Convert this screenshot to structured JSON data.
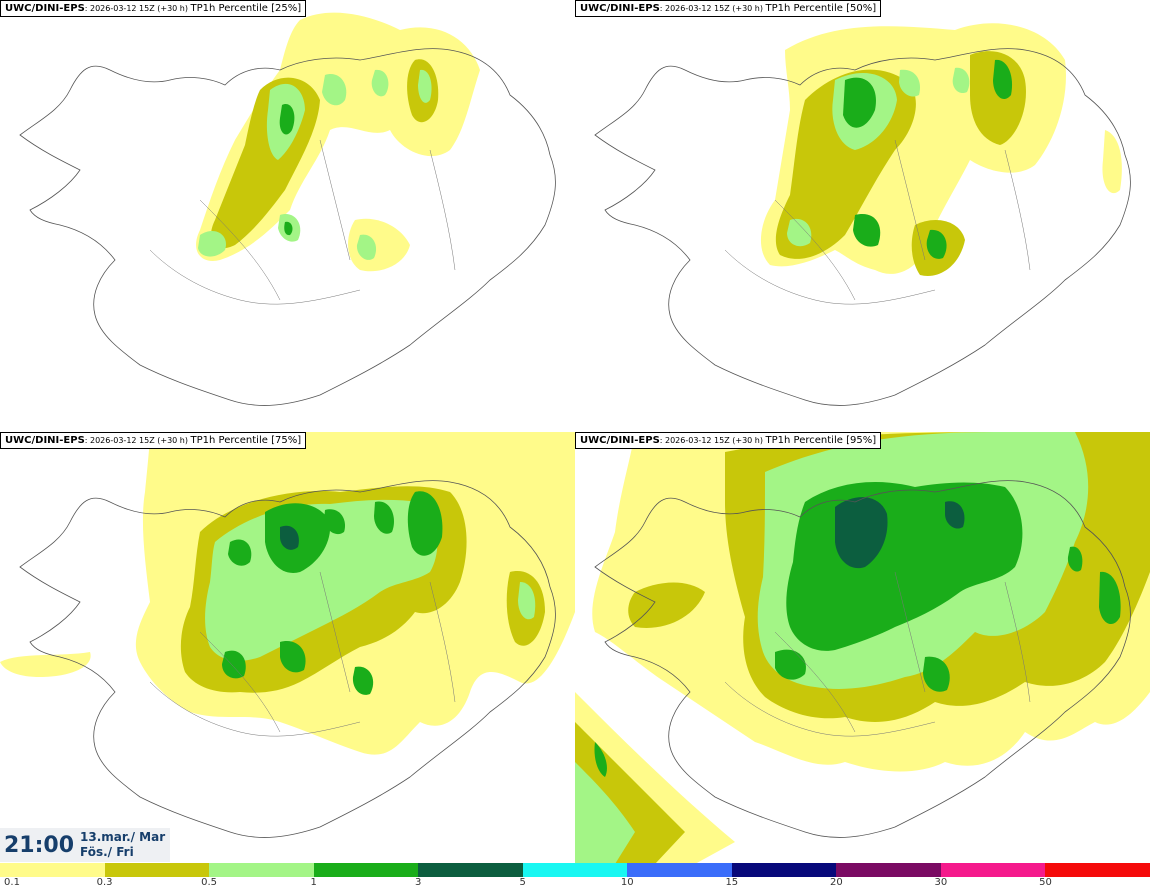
{
  "panels": [
    {
      "source": "UWC/DINI-EPS",
      "meta": ": 2026-03-12 15Z (+30 h) ",
      "title": "TP1h Percentile [25%]"
    },
    {
      "source": "UWC/DINI-EPS",
      "meta": ": 2026-03-12 15Z (+30 h) ",
      "title": "TP1h Percentile [50%]"
    },
    {
      "source": "UWC/DINI-EPS",
      "meta": ": 2026-03-12 15Z (+30 h) ",
      "title": "TP1h Percentile [75%]"
    },
    {
      "source": "UWC/DINI-EPS",
      "meta": ": 2026-03-12 15Z (+30 h) ",
      "title": "TP1h Percentile [95%]"
    }
  ],
  "valid_time": {
    "clock": "21:00",
    "date_line": "13.mar./ Mar",
    "day_line": "Fös./ Fri"
  },
  "legend": {
    "colors": [
      "#fffb8a",
      "#c8c70a",
      "#a3f586",
      "#1aad1a",
      "#0c5e3f",
      "#19f7f2",
      "#3a6dfa",
      "#07087a",
      "#7a0a63",
      "#f51a8c",
      "#f50a0a"
    ],
    "labels": [
      "0.1",
      "0.3",
      "0.5",
      "1",
      "3",
      "5",
      "10",
      "15",
      "20",
      "30",
      "50"
    ]
  }
}
